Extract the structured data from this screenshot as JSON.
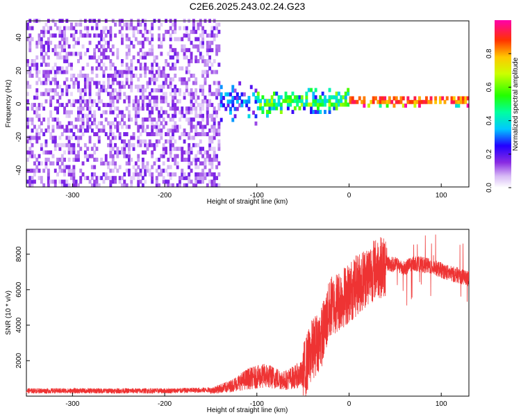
{
  "figure_title": "C2E6.2025.243.02.24.G23",
  "colors": {
    "snr_line": "#ee3333",
    "axis": "#000000",
    "background": "#ffffff"
  },
  "chart_data": [
    {
      "type": "heatmap",
      "title": "C2E6.2025.243.02.24.G23",
      "xlabel": "Height of straight line (km)",
      "ylabel": "Frequency (Hz)",
      "xlim": [
        -350,
        130
      ],
      "ylim": [
        -50,
        50
      ],
      "x_ticks": [
        -300,
        -200,
        -100,
        0,
        100
      ],
      "y_ticks": [
        -40,
        -20,
        0,
        20,
        40
      ],
      "colorbar": {
        "label": "Normalized spectral amplitude",
        "range": [
          0,
          1
        ],
        "ticks": [
          0.0,
          0.2,
          0.4,
          0.6,
          0.8
        ]
      },
      "description_points": [
        {
          "x_range": [
            -350,
            -140
          ],
          "freq_spread": [
            -50,
            50
          ],
          "amplitude": 0.15
        },
        {
          "x_range": [
            -140,
            -100
          ],
          "freq_spread": [
            -15,
            15
          ],
          "amplitude": 0.3
        },
        {
          "x_range": [
            -100,
            0
          ],
          "freq_spread": [
            -8,
            8
          ],
          "amplitude": 0.5
        },
        {
          "x_range": [
            0,
            130
          ],
          "freq_spread": [
            -2,
            4
          ],
          "amplitude": 0.9
        }
      ]
    },
    {
      "type": "line",
      "xlabel": "Height of straight line (km)",
      "ylabel": "SNR (10 * v/v)",
      "xlim": [
        -350,
        130
      ],
      "ylim": [
        0,
        9400
      ],
      "x_ticks": [
        -300,
        -200,
        -100,
        0,
        100
      ],
      "y_ticks": [
        2000,
        4000,
        6000,
        8000
      ],
      "series": [
        {
          "name": "SNR",
          "x": [
            -350,
            -300,
            -250,
            -200,
            -150,
            -130,
            -110,
            -90,
            -70,
            -50,
            -40,
            -30,
            -20,
            -10,
            0,
            10,
            20,
            30,
            40,
            50,
            60,
            70,
            80,
            90,
            100,
            110,
            120,
            130
          ],
          "values": [
            300,
            300,
            300,
            300,
            350,
            600,
            1100,
            1300,
            1000,
            1400,
            2800,
            3500,
            5200,
            5600,
            6000,
            6500,
            7000,
            7400,
            7500,
            7400,
            7200,
            7500,
            7400,
            7300,
            7100,
            6900,
            6800,
            6600
          ]
        }
      ]
    }
  ]
}
